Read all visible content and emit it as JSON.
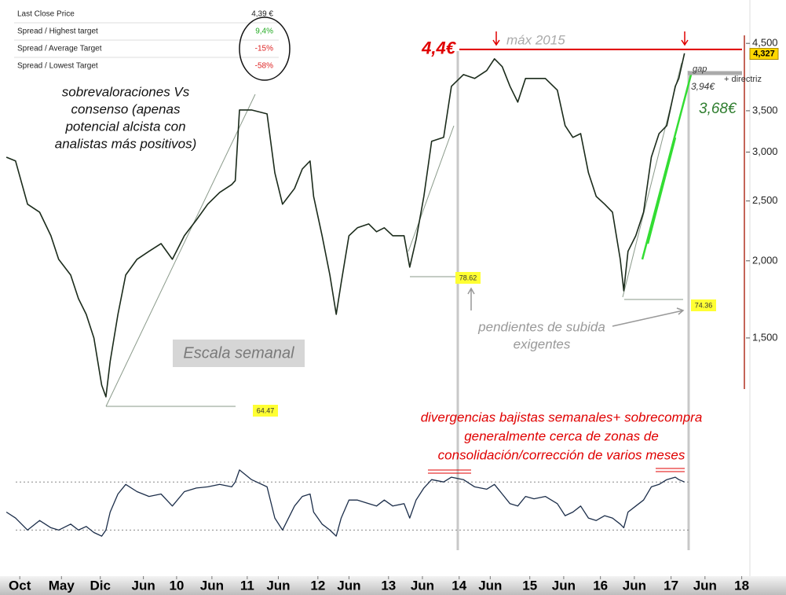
{
  "table": {
    "rows": [
      [
        "Last Close Price",
        "4,39 €"
      ],
      [
        "Spread / Highest target",
        "9,4%"
      ],
      [
        "Spread / Average Target",
        "-15%"
      ],
      [
        "Spread / Lowest Target",
        "-58%"
      ]
    ]
  },
  "annotations": {
    "consensus": [
      "sobrevaloraciones Vs",
      "consenso (apenas",
      "potencial alcista con",
      "analistas más positivos)"
    ],
    "scale": "Escala semanal",
    "max_note": "máx 2015",
    "gap": "gap",
    "gap_price": "3,94€",
    "trendline": "+ directriz",
    "support": "3,68€",
    "slopes": [
      "pendientes de subida",
      "exigentes"
    ],
    "divergence": [
      "divergencias bajistas semanales+ sobrecompra",
      "generalmente cerca de zonas de",
      "consolidación/corrección de varios meses"
    ],
    "rsi_tags": [
      "78.62",
      "74.36",
      "64.47"
    ]
  },
  "chart_data": [
    {
      "type": "line",
      "log_scale": true,
      "color": "#1b2b1b",
      "x": [
        2007.59,
        2007.72,
        2007.89,
        2008.06,
        2008.22,
        2008.33,
        2008.5,
        2008.61,
        2008.72,
        2008.83,
        2008.94,
        2009.0,
        2009.06,
        2009.17,
        2009.28,
        2009.44,
        2009.61,
        2009.78,
        2009.94,
        2010.11,
        2010.28,
        2010.44,
        2010.61,
        2010.78,
        2010.83,
        2010.89,
        2011.06,
        2011.28,
        2011.39,
        2011.5,
        2011.67,
        2011.78,
        2011.89,
        2011.94,
        2012.06,
        2012.17,
        2012.26,
        2012.33,
        2012.44,
        2012.56,
        2012.72,
        2012.83,
        2012.94,
        2013.06,
        2013.22,
        2013.3,
        2013.39,
        2013.5,
        2013.61,
        2013.78,
        2013.89,
        2014.06,
        2014.22,
        2014.39,
        2014.5,
        2014.61,
        2014.72,
        2014.83,
        2014.94,
        2015.06,
        2015.22,
        2015.39,
        2015.5,
        2015.61,
        2015.72,
        2015.83,
        2015.94,
        2016.06,
        2016.17,
        2016.28,
        2016.33,
        2016.39,
        2016.5,
        2016.61,
        2016.72,
        2016.83,
        2016.94,
        2017.06,
        2017.11,
        2017.19
      ],
      "values": [
        2.943,
        2.902,
        2.47,
        2.398,
        2.196,
        2.011,
        1.897,
        1.737,
        1.638,
        1.5,
        1.258,
        1.204,
        1.374,
        1.638,
        1.897,
        2.011,
        2.072,
        2.133,
        2.011,
        2.196,
        2.329,
        2.47,
        2.581,
        2.658,
        2.697,
        3.51,
        3.51,
        3.459,
        2.777,
        2.47,
        2.619,
        2.817,
        2.902,
        2.543,
        2.196,
        1.897,
        1.638,
        1.842,
        2.196,
        2.262,
        2.295,
        2.229,
        2.262,
        2.196,
        2.196,
        1.953,
        2.165,
        2.543,
        3.123,
        3.169,
        3.834,
        4.005,
        3.948,
        4.066,
        4.248,
        4.126,
        3.834,
        3.615,
        3.948,
        3.948,
        3.948,
        3.779,
        3.311,
        3.169,
        3.214,
        2.777,
        2.543,
        2.47,
        2.398,
        2.011,
        1.788,
        2.072,
        2.196,
        2.398,
        2.943,
        3.214,
        3.311,
        3.834,
        3.948,
        4.337
      ],
      "xlim": [
        2007.5,
        2018.06
      ],
      "xticks": [
        {
          "value": 2007.78,
          "label": "Oct"
        },
        {
          "value": 2008.37,
          "label": "May"
        },
        {
          "value": 2008.92,
          "label": "Dic"
        },
        {
          "value": 2009.53,
          "label": "Jun"
        },
        {
          "value": 2010,
          "label": "10"
        },
        {
          "value": 2010.5,
          "label": "Jun"
        },
        {
          "value": 2011,
          "label": "11"
        },
        {
          "value": 2011.44,
          "label": "Jun"
        },
        {
          "value": 2012,
          "label": "12"
        },
        {
          "value": 2012.44,
          "label": "Jun"
        },
        {
          "value": 2013,
          "label": "13"
        },
        {
          "value": 2013.48,
          "label": "Jun"
        },
        {
          "value": 2014,
          "label": "14"
        },
        {
          "value": 2014.44,
          "label": "Jun"
        },
        {
          "value": 2015,
          "label": "15"
        },
        {
          "value": 2015.48,
          "label": "Jun"
        },
        {
          "value": 2016,
          "label": "16"
        },
        {
          "value": 2016.48,
          "label": "Jun"
        },
        {
          "value": 2017,
          "label": "17"
        },
        {
          "value": 2017.48,
          "label": "Jun"
        },
        {
          "value": 2018,
          "label": "18"
        }
      ],
      "ylim": [
        1.152,
        5.29
      ],
      "yticks": [
        {
          "value": 1.5,
          "label": "1,500"
        },
        {
          "value": 2,
          "label": "2,000"
        },
        {
          "value": 2.5,
          "label": "2,500"
        },
        {
          "value": 3,
          "label": "3,000"
        },
        {
          "value": 3.5,
          "label": "3,500"
        },
        {
          "value": 4.5,
          "label": "4,500"
        }
      ],
      "hline": {
        "value": 4.4,
        "label": "4,4€",
        "color": "#e00000"
      },
      "last_price": {
        "value": 4.327,
        "label": "4,327"
      }
    },
    {
      "type": "line",
      "color": "#1c2e4a",
      "x": [
        2007.59,
        2007.72,
        2007.89,
        2008.06,
        2008.22,
        2008.33,
        2008.5,
        2008.61,
        2008.72,
        2008.83,
        2008.94,
        2009.0,
        2009.06,
        2009.17,
        2009.28,
        2009.44,
        2009.61,
        2009.78,
        2009.94,
        2010.11,
        2010.28,
        2010.44,
        2010.61,
        2010.78,
        2010.83,
        2010.89,
        2011.06,
        2011.28,
        2011.39,
        2011.5,
        2011.67,
        2011.78,
        2011.89,
        2011.94,
        2012.06,
        2012.17,
        2012.26,
        2012.33,
        2012.44,
        2012.56,
        2012.72,
        2012.83,
        2012.94,
        2013.06,
        2013.22,
        2013.3,
        2013.39,
        2013.5,
        2013.61,
        2013.78,
        2013.89,
        2014.06,
        2014.22,
        2014.39,
        2014.5,
        2014.61,
        2014.72,
        2014.83,
        2014.94,
        2015.06,
        2015.22,
        2015.39,
        2015.5,
        2015.61,
        2015.72,
        2015.83,
        2015.94,
        2016.06,
        2016.17,
        2016.28,
        2016.33,
        2016.39,
        2016.5,
        2016.61,
        2016.72,
        2016.83,
        2016.94,
        2017.06,
        2017.11,
        2017.19
      ],
      "values": [
        45,
        40,
        30,
        38,
        32,
        30,
        35,
        30,
        33,
        28,
        25,
        30,
        45,
        60,
        68,
        62,
        58,
        60,
        50,
        62,
        65,
        66,
        68,
        66,
        70,
        80,
        72,
        66,
        40,
        30,
        50,
        58,
        60,
        45,
        35,
        30,
        25,
        40,
        55,
        55,
        52,
        50,
        55,
        50,
        52,
        40,
        55,
        65,
        72,
        70,
        74,
        72,
        66,
        64,
        68,
        60,
        52,
        50,
        58,
        56,
        58,
        52,
        42,
        45,
        50,
        40,
        38,
        42,
        40,
        35,
        32,
        45,
        50,
        55,
        66,
        68,
        72,
        74,
        72,
        70
      ],
      "xlim": [
        2007.5,
        2018.06
      ],
      "ylim": [
        10,
        95
      ],
      "hlines": [
        30,
        70
      ]
    }
  ]
}
